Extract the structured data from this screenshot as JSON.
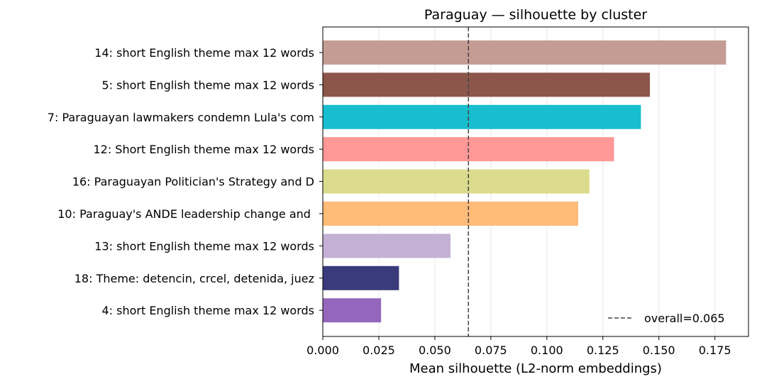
{
  "chart_data": {
    "type": "bar",
    "orientation": "horizontal",
    "title": "Paraguay — silhouette by cluster",
    "xlabel": "Mean silhouette (L2-norm embeddings)",
    "ylabel": "",
    "xlim": [
      0,
      0.19
    ],
    "x_ticks": [
      "0.000",
      "0.025",
      "0.050",
      "0.075",
      "0.100",
      "0.125",
      "0.150",
      "0.175"
    ],
    "grid": "vertical",
    "categories": [
      "14: short English theme max 12 words",
      "5: short English theme max 12 words",
      "7: Paraguayan lawmakers condemn Lula's com",
      "12: Short English theme max 12 words",
      "16: Paraguayan Politician's Strategy and D",
      "10: Paraguay's ANDE leadership change and ",
      "13: short English theme max 12 words",
      "18: Theme: detencin, crcel, detenida, juez",
      "4: short English theme max 12 words"
    ],
    "values": [
      0.18,
      0.146,
      0.142,
      0.13,
      0.119,
      0.114,
      0.057,
      0.034,
      0.026
    ],
    "colors": [
      "#c49c94",
      "#8c564b",
      "#17becf",
      "#ff9896",
      "#dbdb8d",
      "#ffbb78",
      "#c5b0d5",
      "#393b7b",
      "#9467bd"
    ],
    "reference_line": {
      "value": 0.065,
      "label": "overall=0.065",
      "style": "dashed",
      "color": "#444444"
    },
    "legend": {
      "placement": "bottom-right",
      "entries": [
        "overall=0.065"
      ]
    }
  }
}
